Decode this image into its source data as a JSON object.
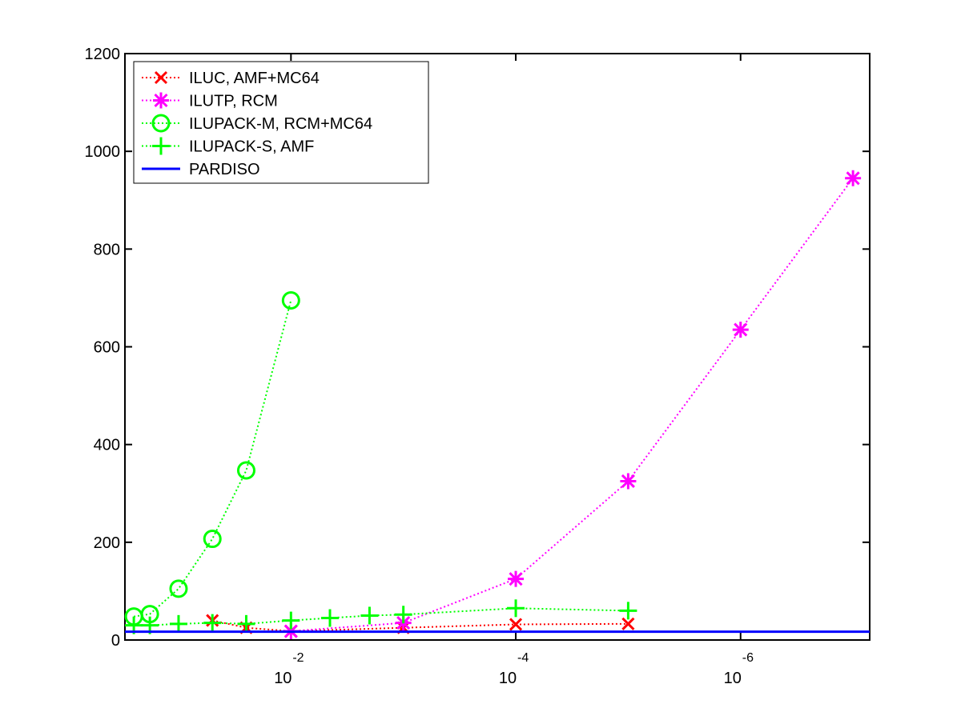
{
  "chart_data": {
    "type": "line",
    "x_scale": "log",
    "x_reversed": true,
    "xlim": [
      0.3,
      7.1e-08
    ],
    "ylim": [
      0,
      1200
    ],
    "y_ticks": [
      0,
      200,
      400,
      600,
      800,
      1000,
      1200
    ],
    "x_ticks": [
      {
        "value": 0.01,
        "base": "10",
        "exp": "-2"
      },
      {
        "value": 0.0001,
        "base": "10",
        "exp": "-4"
      },
      {
        "value": 1e-06,
        "base": "10",
        "exp": "-6"
      }
    ],
    "grid": false,
    "legend_position": "top-left",
    "series": [
      {
        "name": "ILUC, AMF+MC64",
        "color": "#ff0000",
        "marker": "x",
        "line_style": "dotted",
        "x": [
          0.05,
          0.025,
          0.01,
          0.001,
          0.0001,
          1e-05
        ],
        "y": [
          40,
          25,
          18,
          25,
          32,
          33
        ]
      },
      {
        "name": "ILUTP, RCM",
        "color": "#ff00ff",
        "marker": "asterisk",
        "line_style": "dotted",
        "x": [
          0.01,
          0.001,
          0.0001,
          1e-05,
          1e-06,
          1e-07
        ],
        "y": [
          18,
          35,
          125,
          325,
          635,
          945
        ]
      },
      {
        "name": "ILUPACK-M, RCM+MC64",
        "color": "#00ff00",
        "marker": "circle",
        "line_style": "dotted",
        "x": [
          0.25,
          0.18,
          0.1,
          0.05,
          0.025,
          0.01
        ],
        "y": [
          48,
          53,
          105,
          207,
          347,
          695
        ]
      },
      {
        "name": "ILUPACK-S, AMF",
        "color": "#00ff00",
        "marker": "plus",
        "line_style": "dotted",
        "x": [
          0.25,
          0.18,
          0.1,
          0.05,
          0.025,
          0.01,
          0.0045,
          0.002,
          0.001,
          0.0001,
          1e-05
        ],
        "y": [
          30,
          30,
          33,
          35,
          33,
          40,
          45,
          50,
          52,
          65,
          60
        ]
      },
      {
        "name": "PARDISO",
        "color": "#0000ff",
        "marker": "none",
        "line_style": "solid",
        "x": [
          0.3,
          7.1e-08
        ],
        "y": [
          17,
          17
        ]
      }
    ]
  }
}
